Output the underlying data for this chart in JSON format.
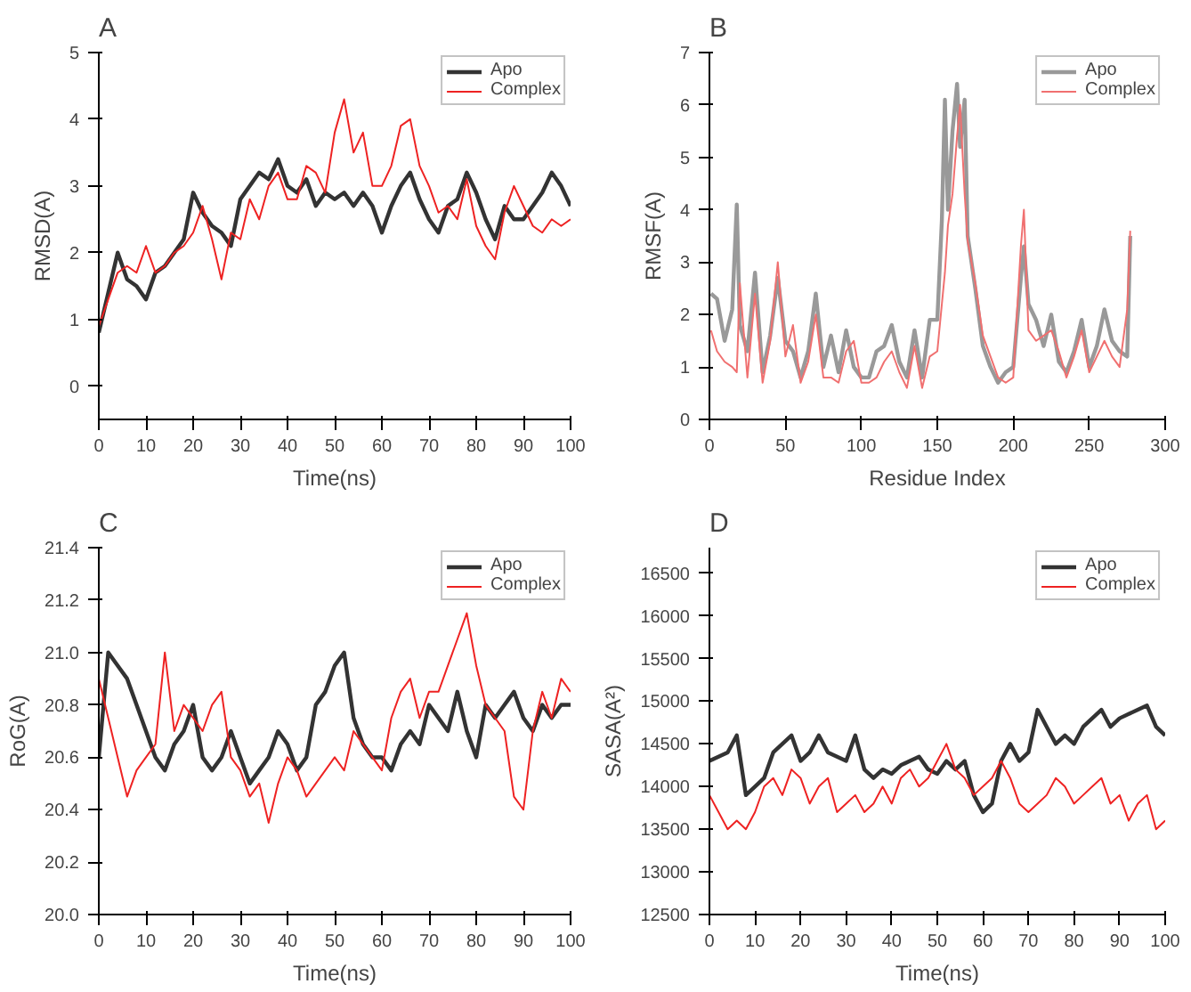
{
  "chart_data": [
    {
      "type": "line",
      "title": "A",
      "xlabel": "Time(ns)",
      "ylabel": "RMSD(A)",
      "xlim": [
        0,
        100
      ],
      "ylim": [
        -0.5,
        5
      ],
      "xticks": [
        0,
        10,
        20,
        30,
        40,
        50,
        60,
        70,
        80,
        90,
        100
      ],
      "yticks": [
        0,
        1,
        2,
        3,
        4,
        5
      ],
      "grid": false,
      "legend": "top right",
      "x": [
        0,
        2,
        4,
        6,
        8,
        10,
        12,
        14,
        16,
        18,
        20,
        22,
        24,
        26,
        28,
        30,
        32,
        34,
        36,
        38,
        40,
        42,
        44,
        46,
        48,
        50,
        52,
        54,
        56,
        58,
        60,
        62,
        64,
        66,
        68,
        70,
        72,
        74,
        76,
        78,
        80,
        82,
        84,
        86,
        88,
        90,
        92,
        94,
        96,
        98,
        100
      ],
      "series": [
        {
          "name": "Apo",
          "color": "#333333",
          "values": [
            0.8,
            1.4,
            2.0,
            1.6,
            1.5,
            1.3,
            1.7,
            1.8,
            2.0,
            2.2,
            2.9,
            2.6,
            2.4,
            2.3,
            2.1,
            2.8,
            3.0,
            3.2,
            3.1,
            3.4,
            3.0,
            2.9,
            3.1,
            2.7,
            2.9,
            2.8,
            2.9,
            2.7,
            2.9,
            2.7,
            2.3,
            2.7,
            3.0,
            3.2,
            2.8,
            2.5,
            2.3,
            2.7,
            2.8,
            3.2,
            2.9,
            2.5,
            2.2,
            2.7,
            2.5,
            2.5,
            2.7,
            2.9,
            3.2,
            3.0,
            2.7
          ]
        },
        {
          "name": "Complex",
          "color": "#ee2222",
          "values": [
            0.9,
            1.3,
            1.7,
            1.8,
            1.7,
            2.1,
            1.7,
            1.8,
            2.0,
            2.1,
            2.3,
            2.7,
            2.2,
            1.6,
            2.3,
            2.2,
            2.8,
            2.5,
            3.0,
            3.2,
            2.8,
            2.8,
            3.3,
            3.2,
            2.9,
            3.8,
            4.3,
            3.5,
            3.8,
            3.0,
            3.0,
            3.3,
            3.9,
            4.0,
            3.3,
            3.0,
            2.6,
            2.7,
            2.5,
            3.1,
            2.4,
            2.1,
            1.9,
            2.6,
            3.0,
            2.7,
            2.4,
            2.3,
            2.5,
            2.4,
            2.5
          ]
        }
      ]
    },
    {
      "type": "line",
      "title": "B",
      "xlabel": "Residue Index",
      "ylabel": "RMSF(A)",
      "xlim": [
        0,
        300
      ],
      "ylim": [
        0,
        7
      ],
      "xticks": [
        0,
        50,
        100,
        150,
        200,
        250,
        300
      ],
      "yticks": [
        0,
        1,
        2,
        3,
        4,
        5,
        6,
        7
      ],
      "grid": false,
      "legend": "top right",
      "x": [
        1,
        5,
        10,
        15,
        18,
        20,
        25,
        30,
        35,
        40,
        45,
        50,
        55,
        60,
        65,
        70,
        75,
        80,
        85,
        90,
        95,
        100,
        105,
        110,
        115,
        120,
        125,
        130,
        135,
        140,
        145,
        150,
        153,
        155,
        157,
        160,
        163,
        165,
        168,
        170,
        175,
        180,
        185,
        190,
        195,
        200,
        205,
        207,
        210,
        215,
        220,
        225,
        230,
        235,
        240,
        245,
        250,
        255,
        260,
        265,
        270,
        275,
        277
      ],
      "series": [
        {
          "name": "Apo",
          "color": "#999999",
          "values": [
            2.4,
            2.3,
            1.5,
            2.1,
            4.1,
            1.8,
            1.3,
            2.8,
            0.9,
            1.6,
            2.7,
            1.5,
            1.3,
            0.8,
            1.3,
            2.4,
            1.0,
            1.6,
            0.9,
            1.7,
            1.0,
            0.8,
            0.8,
            1.3,
            1.4,
            1.8,
            1.1,
            0.8,
            1.7,
            0.8,
            1.9,
            1.9,
            3.8,
            6.1,
            4.0,
            5.5,
            6.4,
            5.2,
            6.1,
            3.5,
            2.5,
            1.4,
            1.0,
            0.7,
            0.9,
            1.0,
            2.7,
            3.3,
            2.2,
            1.9,
            1.4,
            2.0,
            1.1,
            0.9,
            1.3,
            1.9,
            1.0,
            1.4,
            2.1,
            1.5,
            1.3,
            1.2,
            3.5
          ]
        },
        {
          "name": "Complex",
          "color": "#f07070",
          "values": [
            1.7,
            1.3,
            1.1,
            1.0,
            0.9,
            2.6,
            0.8,
            2.4,
            0.7,
            1.5,
            3.0,
            1.2,
            1.8,
            0.7,
            1.1,
            2.0,
            0.8,
            0.8,
            0.7,
            1.3,
            1.5,
            0.7,
            0.7,
            0.8,
            1.1,
            1.3,
            0.9,
            0.6,
            1.4,
            0.6,
            1.2,
            1.3,
            2.2,
            2.8,
            3.7,
            4.3,
            5.4,
            6.0,
            4.3,
            3.4,
            2.6,
            1.6,
            1.2,
            0.8,
            0.7,
            0.8,
            3.3,
            4.0,
            1.7,
            1.5,
            1.6,
            1.7,
            1.3,
            0.8,
            1.2,
            1.7,
            0.9,
            1.2,
            1.5,
            1.2,
            1.0,
            2.1,
            3.6
          ]
        }
      ]
    },
    {
      "type": "line",
      "title": "C",
      "xlabel": "Time(ns)",
      "ylabel": "RoG(A)",
      "xlim": [
        0,
        100
      ],
      "ylim": [
        20.0,
        21.4
      ],
      "xticks": [
        0,
        10,
        20,
        30,
        40,
        50,
        60,
        70,
        80,
        90,
        100
      ],
      "yticks": [
        {
          "value": 20.0,
          "label": "20.0"
        },
        {
          "value": 20.2,
          "label": "20.2"
        },
        {
          "value": 20.4,
          "label": "20.4"
        },
        {
          "value": 20.6,
          "label": "20.6"
        },
        {
          "value": 20.8,
          "label": "20.8"
        },
        {
          "value": 21.0,
          "label": "21.0"
        },
        {
          "value": 21.2,
          "label": "21.2"
        },
        {
          "value": 21.4,
          "label": "21.4"
        }
      ],
      "grid": false,
      "legend": "top right",
      "x": [
        0,
        2,
        4,
        6,
        8,
        10,
        12,
        14,
        16,
        18,
        20,
        22,
        24,
        26,
        28,
        30,
        32,
        34,
        36,
        38,
        40,
        42,
        44,
        46,
        48,
        50,
        52,
        54,
        56,
        58,
        60,
        62,
        64,
        66,
        68,
        70,
        72,
        74,
        76,
        78,
        80,
        82,
        84,
        86,
        88,
        90,
        92,
        94,
        96,
        98,
        100
      ],
      "series": [
        {
          "name": "Apo",
          "color": "#333333",
          "values": [
            20.6,
            21.0,
            20.95,
            20.9,
            20.8,
            20.7,
            20.6,
            20.55,
            20.65,
            20.7,
            20.8,
            20.6,
            20.55,
            20.6,
            20.7,
            20.6,
            20.5,
            20.55,
            20.6,
            20.7,
            20.65,
            20.55,
            20.6,
            20.8,
            20.85,
            20.95,
            21.0,
            20.75,
            20.65,
            20.6,
            20.6,
            20.55,
            20.65,
            20.7,
            20.65,
            20.8,
            20.75,
            20.7,
            20.85,
            20.7,
            20.6,
            20.8,
            20.75,
            20.8,
            20.85,
            20.75,
            20.7,
            20.8,
            20.75,
            20.8,
            20.8
          ]
        },
        {
          "name": "Complex",
          "color": "#ee2222",
          "values": [
            20.9,
            20.75,
            20.6,
            20.45,
            20.55,
            20.6,
            20.65,
            21.0,
            20.7,
            20.8,
            20.75,
            20.7,
            20.8,
            20.85,
            20.6,
            20.55,
            20.45,
            20.5,
            20.35,
            20.5,
            20.6,
            20.55,
            20.45,
            20.5,
            20.55,
            20.6,
            20.55,
            20.7,
            20.65,
            20.6,
            20.55,
            20.75,
            20.85,
            20.9,
            20.75,
            20.85,
            20.85,
            20.95,
            21.05,
            21.15,
            20.95,
            20.8,
            20.75,
            20.7,
            20.45,
            20.4,
            20.7,
            20.85,
            20.75,
            20.9,
            20.85
          ]
        }
      ]
    },
    {
      "type": "line",
      "title": "D",
      "xlabel": "Time(ns)",
      "ylabel": "SASA(A²)",
      "xlim": [
        0,
        100
      ],
      "ylim": [
        12500,
        16800
      ],
      "xticks": [
        0,
        10,
        20,
        30,
        40,
        50,
        60,
        70,
        80,
        90,
        100
      ],
      "yticks": [
        12500,
        13000,
        13500,
        14000,
        14500,
        15000,
        15500,
        16000,
        16500
      ],
      "grid": false,
      "legend": "top right",
      "x": [
        0,
        2,
        4,
        6,
        8,
        10,
        12,
        14,
        16,
        18,
        20,
        22,
        24,
        26,
        28,
        30,
        32,
        34,
        36,
        38,
        40,
        42,
        44,
        46,
        48,
        50,
        52,
        54,
        56,
        58,
        60,
        62,
        64,
        66,
        68,
        70,
        72,
        74,
        76,
        78,
        80,
        82,
        84,
        86,
        88,
        90,
        92,
        94,
        96,
        98,
        100
      ],
      "series": [
        {
          "name": "Apo",
          "color": "#333333",
          "values": [
            14300,
            14350,
            14400,
            14600,
            13900,
            14000,
            14100,
            14400,
            14500,
            14600,
            14300,
            14400,
            14600,
            14400,
            14350,
            14300,
            14600,
            14200,
            14100,
            14200,
            14150,
            14250,
            14300,
            14350,
            14200,
            14150,
            14300,
            14200,
            14300,
            13900,
            13700,
            13800,
            14300,
            14500,
            14300,
            14400,
            14900,
            14700,
            14500,
            14600,
            14500,
            14700,
            14800,
            14900,
            14700,
            14800,
            14850,
            14900,
            14950,
            14700,
            14600
          ]
        },
        {
          "name": "Complex",
          "color": "#ee2222",
          "values": [
            13900,
            13700,
            13500,
            13600,
            13500,
            13700,
            14000,
            14100,
            13900,
            14200,
            14100,
            13800,
            14000,
            14100,
            13700,
            13800,
            13900,
            13700,
            13800,
            14000,
            13800,
            14100,
            14200,
            14000,
            14100,
            14300,
            14500,
            14200,
            14100,
            13900,
            14000,
            14100,
            14300,
            14100,
            13800,
            13700,
            13800,
            13900,
            14100,
            14000,
            13800,
            13900,
            14000,
            14100,
            13800,
            13900,
            13600,
            13800,
            13900,
            13500,
            13600
          ]
        }
      ]
    }
  ]
}
